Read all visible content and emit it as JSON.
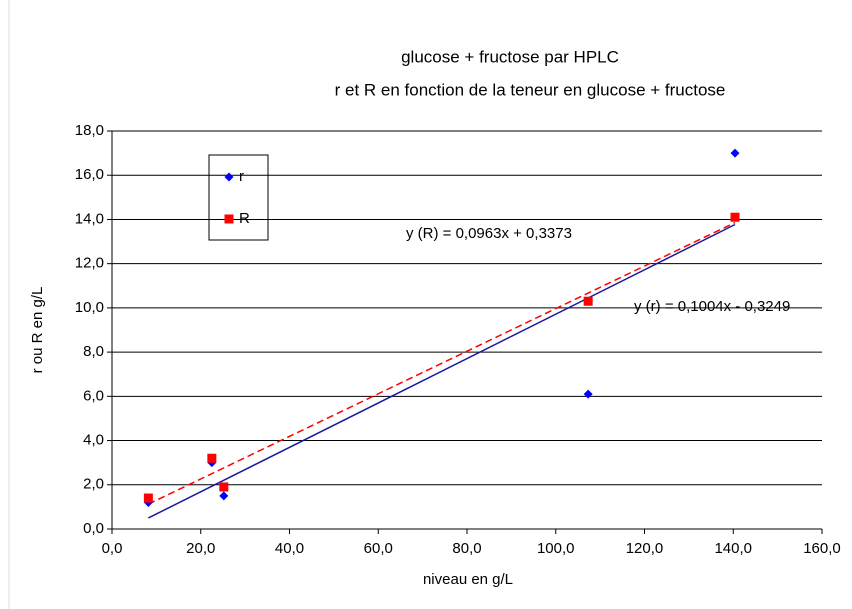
{
  "chart_data": {
    "type": "scatter",
    "title": "glucose + fructose par HPLC",
    "subtitle": "r et R en fonction de la teneur en glucose + fructose",
    "xlabel": "niveau en g/L",
    "ylabel": "r ou R en g/L",
    "xlim": [
      0,
      160
    ],
    "ylim": [
      0,
      18
    ],
    "xticks": [
      {
        "value": 0,
        "label": "0,0"
      },
      {
        "value": 20,
        "label": "20,0"
      },
      {
        "value": 40,
        "label": "40,0"
      },
      {
        "value": 60,
        "label": "60,0"
      },
      {
        "value": 80,
        "label": "80,0"
      },
      {
        "value": 100,
        "label": "100,0"
      },
      {
        "value": 120,
        "label": "120,0"
      },
      {
        "value": 140,
        "label": "140,0"
      },
      {
        "value": 160,
        "label": "160,0"
      }
    ],
    "yticks": [
      {
        "value": 0,
        "label": "0,0"
      },
      {
        "value": 2,
        "label": "2,0"
      },
      {
        "value": 4,
        "label": "4,0"
      },
      {
        "value": 6,
        "label": "6,0"
      },
      {
        "value": 8,
        "label": "8,0"
      },
      {
        "value": 10,
        "label": "10,0"
      },
      {
        "value": 12,
        "label": "12,0"
      },
      {
        "value": 14,
        "label": "14,0"
      },
      {
        "value": 16,
        "label": "16,0"
      },
      {
        "value": 18,
        "label": "18,0"
      }
    ],
    "grid": true,
    "legend": "upper left",
    "series": [
      {
        "name": "r",
        "color": "#0000ff",
        "marker": "diamond",
        "x": [
          8.2,
          22.5,
          25.2,
          107.3,
          140.4
        ],
        "values": [
          1.2,
          3.0,
          1.5,
          6.1,
          17.0
        ]
      },
      {
        "name": "R",
        "color": "#ff0000",
        "marker": "square",
        "x": [
          8.2,
          22.5,
          25.2,
          107.3,
          140.4
        ],
        "values": [
          1.4,
          3.2,
          1.9,
          10.3,
          14.1
        ]
      }
    ],
    "trendlines": [
      {
        "label": "y (r) = 0,1004x - 0,3249",
        "slope": 0.1004,
        "intercept": -0.3249,
        "color": "#1a1a99",
        "label_color": "#336666",
        "dashed": false
      },
      {
        "label": "y (R) = 0,0963x + 0,3373",
        "slope": 0.0963,
        "intercept": 0.3373,
        "color": "#ff0000",
        "label_color": "#ff0000",
        "dashed": true
      }
    ]
  }
}
